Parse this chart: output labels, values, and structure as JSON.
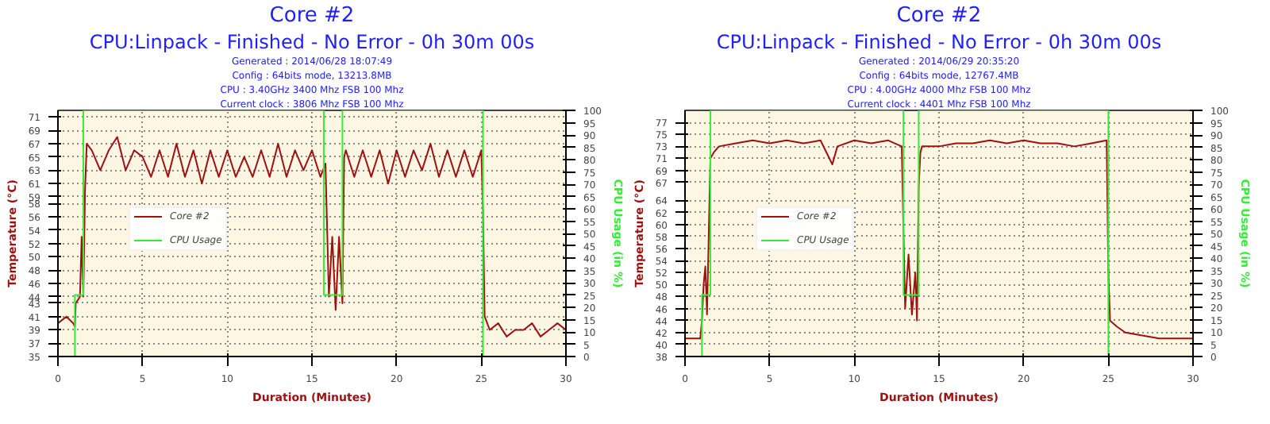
{
  "chart_data": [
    {
      "type": "line",
      "title": "Core #2",
      "subtitle": "CPU:Linpack - Finished - No Error - 0h 30m 00s",
      "annotations": [
        "Generated : 2014/06/28 18:07:49",
        "Config : 64bits mode, 13213.8MB",
        "CPU : 3.40GHz 3400 Mhz FSB 100 Mhz",
        "Current clock : 3806 Mhz FSB 100 Mhz"
      ],
      "xlabel": "Duration (Minutes)",
      "ylabel": "Temperature (°C)",
      "y2label": "CPU Usage (in %)",
      "xlim": [
        0,
        30
      ],
      "xticks": [
        0,
        5,
        10,
        15,
        20,
        25,
        30
      ],
      "ylim": [
        35,
        72
      ],
      "yticks": [
        35,
        37,
        39,
        41,
        43,
        44,
        46,
        48,
        50,
        52,
        54,
        56,
        58,
        59,
        61,
        63,
        65,
        67,
        69,
        71
      ],
      "y2lim": [
        0,
        100
      ],
      "y2ticks": [
        0,
        5,
        10,
        15,
        20,
        25,
        30,
        35,
        40,
        45,
        50,
        55,
        60,
        65,
        70,
        75,
        80,
        85,
        90,
        95,
        100
      ],
      "grid": true,
      "legend": "left",
      "series": [
        {
          "name": "Core #2",
          "color": "#a01010",
          "x": [
            0,
            0.5,
            0.9,
            1.0,
            1.05,
            1.3,
            1.4,
            1.5,
            1.6,
            1.7,
            2,
            2.5,
            3,
            3.5,
            4,
            4.5,
            5,
            5.5,
            6,
            6.5,
            7,
            7.5,
            8,
            8.5,
            9,
            9.5,
            10,
            10.5,
            11,
            11.5,
            12,
            12.5,
            13,
            13.5,
            14,
            14.5,
            15,
            15.5,
            15.8,
            15.9,
            16,
            16.2,
            16.4,
            16.6,
            16.8,
            16.9,
            17,
            17.5,
            18,
            18.5,
            19,
            19.5,
            20,
            20.5,
            21,
            21.5,
            22,
            22.5,
            23,
            23.5,
            24,
            24.5,
            25,
            25.1,
            25.2,
            25.5,
            26,
            26.5,
            27,
            27.5,
            28,
            28.5,
            29,
            29.5,
            30
          ],
          "values": [
            40,
            41,
            40,
            39.5,
            43,
            44,
            53,
            44,
            60,
            67,
            66,
            63,
            66,
            68,
            63,
            66,
            65,
            62,
            66,
            62,
            67,
            62,
            66,
            61,
            66,
            62,
            66,
            62,
            65,
            62,
            66,
            62,
            67,
            62,
            66,
            63,
            66,
            62,
            64,
            54,
            44,
            53,
            42,
            53,
            43,
            65,
            66,
            62,
            66,
            62,
            66,
            61,
            66,
            62,
            66,
            63,
            67,
            62,
            66,
            62,
            66,
            62,
            66,
            57,
            41,
            39,
            40,
            38,
            39,
            39,
            40,
            38,
            39,
            40,
            39
          ]
        },
        {
          "name": "CPU Usage",
          "color": "#33ee33",
          "axis": "y2",
          "x": [
            0,
            1,
            1,
            1.5,
            1.5,
            15.7,
            15.7,
            16.8,
            16.8,
            25.1,
            25.1,
            30
          ],
          "values": [
            0,
            0,
            25,
            25,
            100,
            100,
            25,
            25,
            100,
            100,
            0,
            0
          ]
        }
      ]
    },
    {
      "type": "line",
      "title": "Core #2",
      "subtitle": "CPU:Linpack - Finished - No Error - 0h 30m 00s",
      "annotations": [
        "Generated : 2014/06/29 20:35:20",
        "Config : 64bits mode, 12767.4MB",
        "CPU : 4.00GHz 4000 Mhz FSB 100 Mhz",
        "Current clock : 4401 Mhz FSB 100 Mhz"
      ],
      "xlabel": "Duration (Minutes)",
      "ylabel": "Temperature (°C)",
      "y2label": "CPU Usage (in %)",
      "xlim": [
        0,
        30
      ],
      "xticks": [
        0,
        5,
        10,
        15,
        20,
        25,
        30
      ],
      "ylim": [
        38,
        79
      ],
      "yticks": [
        38,
        40,
        42,
        44,
        46,
        48,
        50,
        52,
        54,
        56,
        58,
        60,
        62,
        64,
        67,
        69,
        71,
        73,
        75,
        77
      ],
      "y2lim": [
        0,
        100
      ],
      "y2ticks": [
        0,
        5,
        10,
        15,
        20,
        25,
        30,
        35,
        40,
        45,
        50,
        55,
        60,
        65,
        70,
        75,
        80,
        85,
        90,
        95,
        100
      ],
      "grid": true,
      "legend": "left",
      "series": [
        {
          "name": "Core #2",
          "color": "#a01010",
          "x": [
            0,
            0.9,
            1,
            1.1,
            1.2,
            1.3,
            1.5,
            1.7,
            2,
            3,
            4,
            5,
            6,
            7,
            8,
            8.7,
            9,
            10,
            11,
            12,
            12.8,
            12.9,
            13,
            13.2,
            13.4,
            13.6,
            13.7,
            13.8,
            13.9,
            14,
            15,
            16,
            17,
            18,
            19,
            20,
            21,
            22,
            23,
            24,
            24.9,
            25,
            25.1,
            25.5,
            26,
            27,
            28,
            29,
            30
          ],
          "values": [
            41,
            41,
            44,
            50,
            53,
            45,
            71,
            72,
            73,
            73.5,
            74,
            73.5,
            74,
            73.5,
            74,
            70,
            73,
            74,
            73.5,
            74,
            73,
            59,
            46,
            55,
            45,
            52,
            44,
            66,
            72,
            73,
            73,
            73.5,
            73.5,
            74,
            73.5,
            74,
            73.5,
            73.5,
            73,
            73.5,
            74,
            52,
            44,
            43,
            42,
            41.5,
            41,
            41,
            41
          ]
        },
        {
          "name": "CPU Usage",
          "color": "#33ee33",
          "axis": "y2",
          "x": [
            0,
            1,
            1,
            1.5,
            1.5,
            12.9,
            12.9,
            13.8,
            13.8,
            25,
            25,
            30
          ],
          "values": [
            0,
            0,
            25,
            25,
            100,
            100,
            25,
            25,
            100,
            100,
            0,
            0
          ]
        }
      ]
    }
  ]
}
